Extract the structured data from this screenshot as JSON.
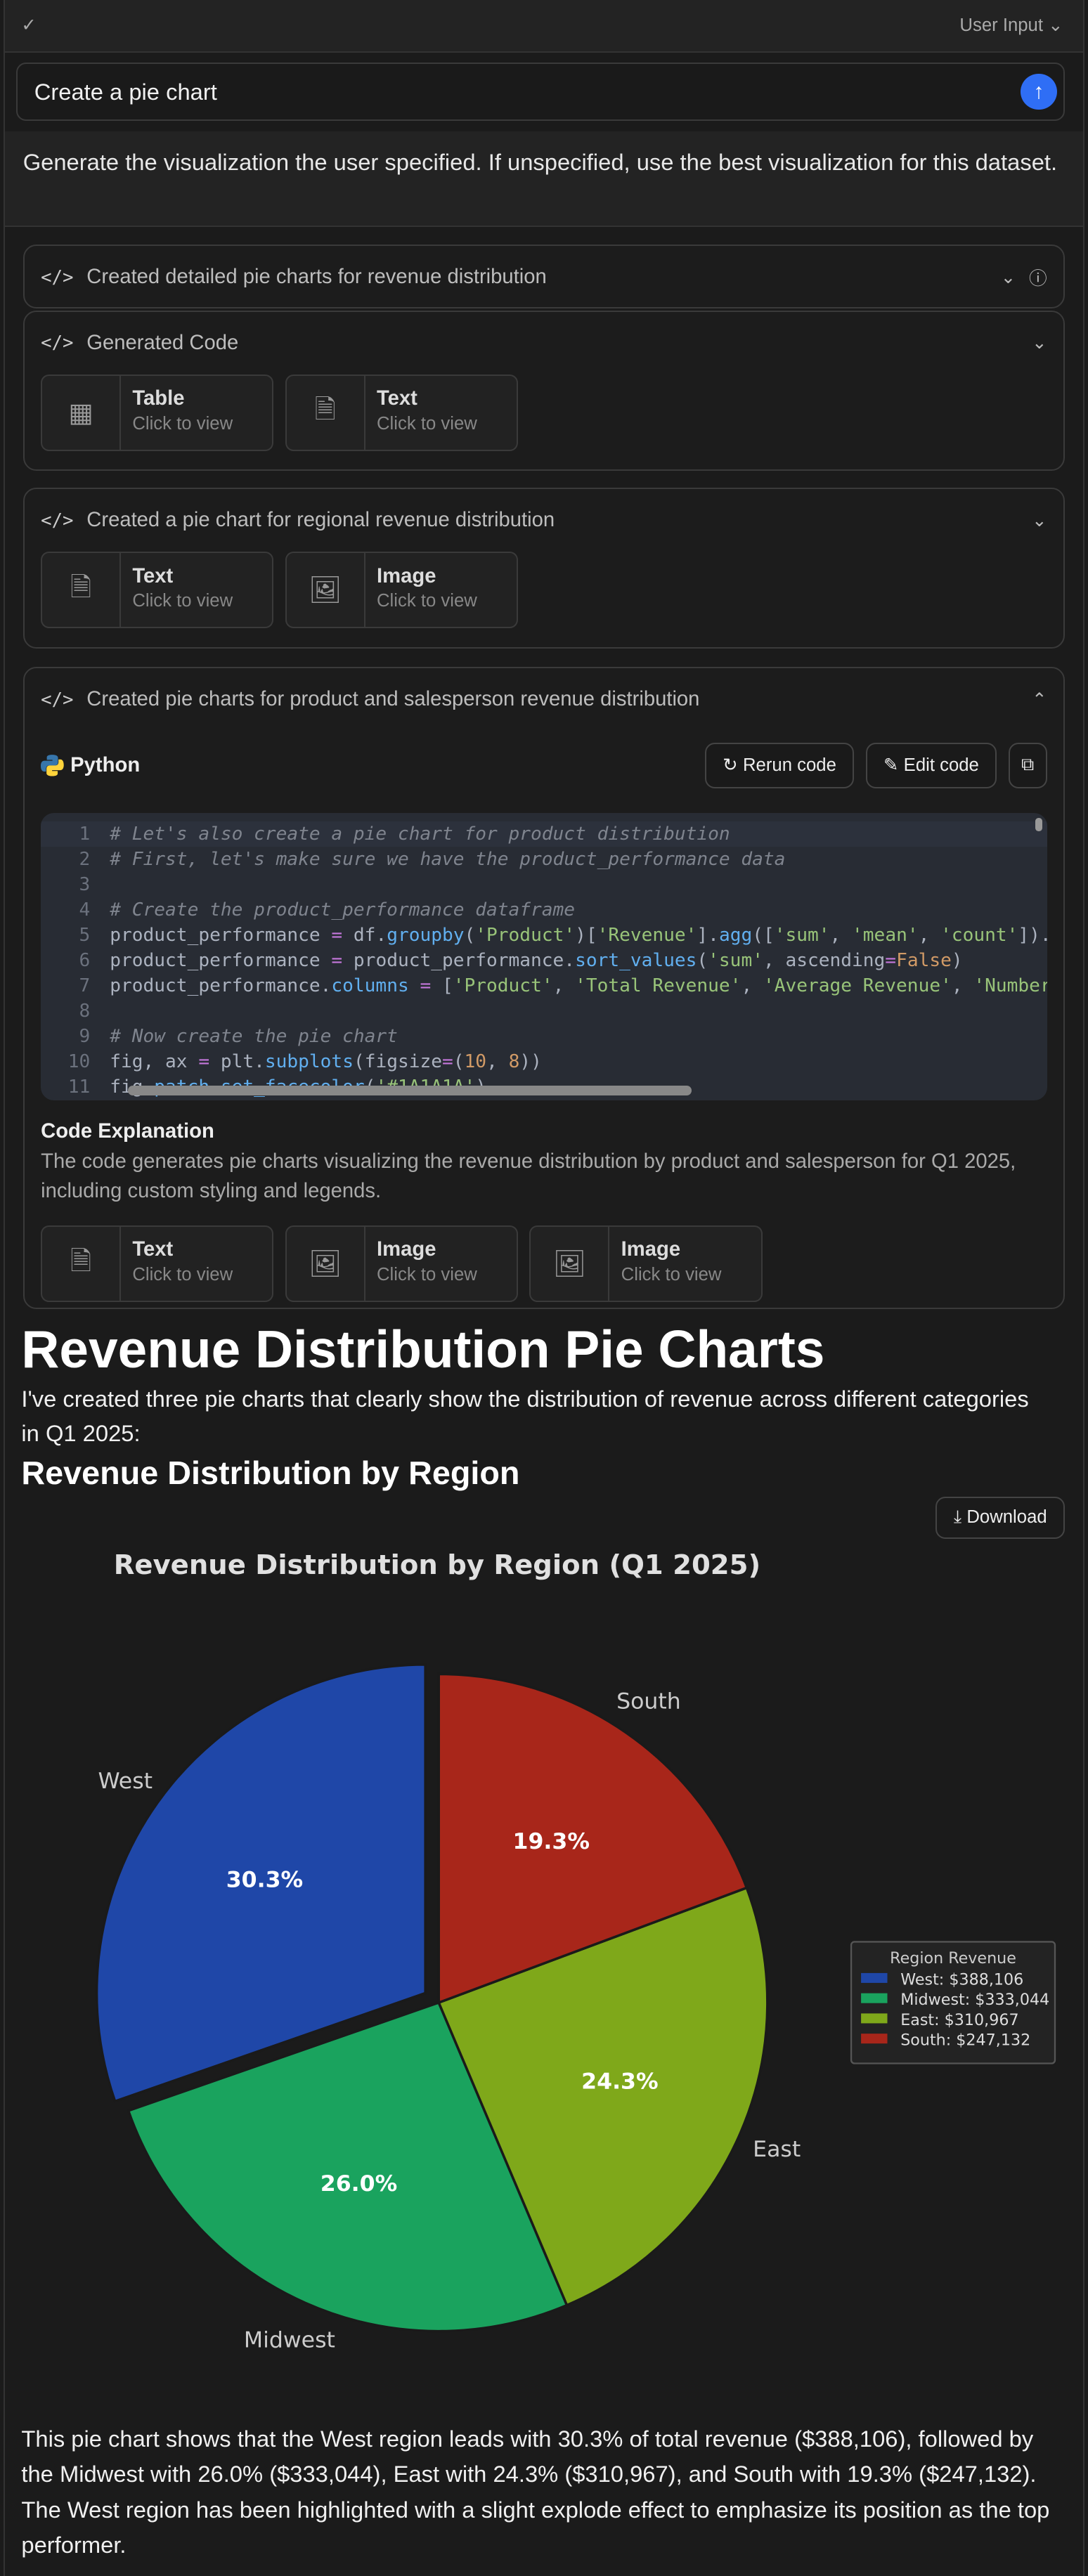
{
  "topbar": {
    "check": "✓",
    "label": "User Input"
  },
  "prompt": {
    "value": "Create a pie chart"
  },
  "instruction": "Generate the visualization the user specified. If unspecified, use the best visualization for this dataset.",
  "cards": [
    {
      "title": "Created detailed pie charts for revenue distribution"
    },
    {
      "title": "Generated Code",
      "tiles": [
        {
          "label": "Table",
          "sub": "Click to view",
          "icon": "table-icon"
        },
        {
          "label": "Text",
          "sub": "Click to view",
          "icon": "document-icon"
        }
      ]
    },
    {
      "title": "Created a pie chart for regional revenue distribution",
      "tiles": [
        {
          "label": "Text",
          "sub": "Click to view",
          "icon": "document-icon"
        },
        {
          "label": "Image",
          "sub": "Click to view",
          "icon": "image-icon"
        }
      ]
    },
    {
      "title": "Created pie charts for product and salesperson revenue distribution",
      "language": "Python",
      "rerun": "Rerun code",
      "edit": "Edit code",
      "code": [
        [
          [
            "cm",
            "# Let's also create a pie chart for product distribution"
          ]
        ],
        [
          [
            "cm",
            "# First, let's make sure we have the product_performance data"
          ]
        ],
        [],
        [
          [
            "cm",
            "# Create the product_performance dataframe"
          ]
        ],
        [
          [
            "tx_",
            "product_performance "
          ],
          [
            "op",
            "="
          ],
          [
            "tx_",
            " df."
          ],
          [
            "fn",
            "groupby"
          ],
          [
            "tx_",
            "("
          ],
          [
            "st",
            "'Product'"
          ],
          [
            "tx_",
            ")["
          ],
          [
            "st",
            "'Revenue'"
          ],
          [
            "tx_",
            "]."
          ],
          [
            "fn",
            "agg"
          ],
          [
            "tx_",
            "(["
          ],
          [
            "st",
            "'sum'"
          ],
          [
            "tx_",
            ", "
          ],
          [
            "st",
            "'mean'"
          ],
          [
            "tx_",
            ", "
          ],
          [
            "st",
            "'count'"
          ],
          [
            "tx_",
            "]).reset_index()"
          ]
        ],
        [
          [
            "tx_",
            "product_performance "
          ],
          [
            "op",
            "="
          ],
          [
            "tx_",
            " product_performance."
          ],
          [
            "fn",
            "sort_values"
          ],
          [
            "tx_",
            "("
          ],
          [
            "st",
            "'sum'"
          ],
          [
            "tx_",
            ", ascending"
          ],
          [
            "op",
            "="
          ],
          [
            "nu",
            "False"
          ],
          [
            "tx_",
            ")"
          ]
        ],
        [
          [
            "tx_",
            "product_performance."
          ],
          [
            "fn",
            "columns"
          ],
          [
            "tx_",
            " "
          ],
          [
            "op",
            "="
          ],
          [
            "tx_",
            " ["
          ],
          [
            "st",
            "'Product'"
          ],
          [
            "tx_",
            ", "
          ],
          [
            "st",
            "'Total Revenue'"
          ],
          [
            "tx_",
            ", "
          ],
          [
            "st",
            "'Average Revenue'"
          ],
          [
            "tx_",
            ", "
          ],
          [
            "st",
            "'Number of Sales'"
          ],
          [
            "tx_",
            "]"
          ]
        ],
        [],
        [
          [
            "cm",
            "# Now create the pie chart"
          ]
        ],
        [
          [
            "tx_",
            "fig, ax "
          ],
          [
            "op",
            "="
          ],
          [
            "tx_",
            " plt."
          ],
          [
            "fn",
            "subplots"
          ],
          [
            "tx_",
            "(figsize"
          ],
          [
            "op",
            "="
          ],
          [
            "tx_",
            "("
          ],
          [
            "nu",
            "10"
          ],
          [
            "tx_",
            ", "
          ],
          [
            "nu",
            "8"
          ],
          [
            "tx_",
            "))"
          ]
        ],
        [
          [
            "tx_",
            "fig."
          ],
          [
            "fn",
            "patch.set_facecolor"
          ],
          [
            "tx_",
            "("
          ],
          [
            "st",
            "'#1A1A1A'"
          ],
          [
            "tx_",
            ")"
          ]
        ]
      ],
      "explanation_title": "Code Explanation",
      "explanation": "The code generates pie charts visualizing the revenue distribution by product and salesperson for Q1 2025, including custom styling and legends.",
      "tiles": [
        {
          "label": "Text",
          "sub": "Click to view",
          "icon": "document-icon"
        },
        {
          "label": "Image",
          "sub": "Click to view",
          "icon": "image-icon"
        },
        {
          "label": "Image",
          "sub": "Click to view",
          "icon": "image-icon"
        }
      ]
    }
  ],
  "heading": "Revenue Distribution Pie Charts",
  "intro": "I've created three pie charts that clearly show the distribution of revenue across different categories in Q1 2025:",
  "subheading": "Revenue Distribution by Region",
  "download": "Download",
  "chart_data": {
    "type": "pie",
    "title": "Revenue Distribution by Region (Q1 2025)",
    "categories": [
      "West",
      "Midwest",
      "East",
      "South"
    ],
    "values": [
      388106,
      333044,
      310967,
      247132
    ],
    "percent_labels": [
      "30.3%",
      "26.0%",
      "24.3%",
      "19.3%"
    ],
    "colors": [
      "#1f47a8",
      "#1aa35e",
      "#7fa81a",
      "#a8261a"
    ],
    "exploded": "West",
    "legend": {
      "title": "Region Revenue",
      "entries": [
        "West: $388,106",
        "Midwest: $333,044",
        "East: $310,967",
        "South: $247,132"
      ],
      "placement": "right"
    }
  },
  "summary": "This pie chart shows that the West region leads with 30.3% of total revenue ($388,106), followed by the Midwest with 26.0% ($333,044), East with 24.3% ($310,967), and South with 19.3% ($247,132). The West region has been highlighted with a slight explode effect to emphasize its position as the top performer."
}
